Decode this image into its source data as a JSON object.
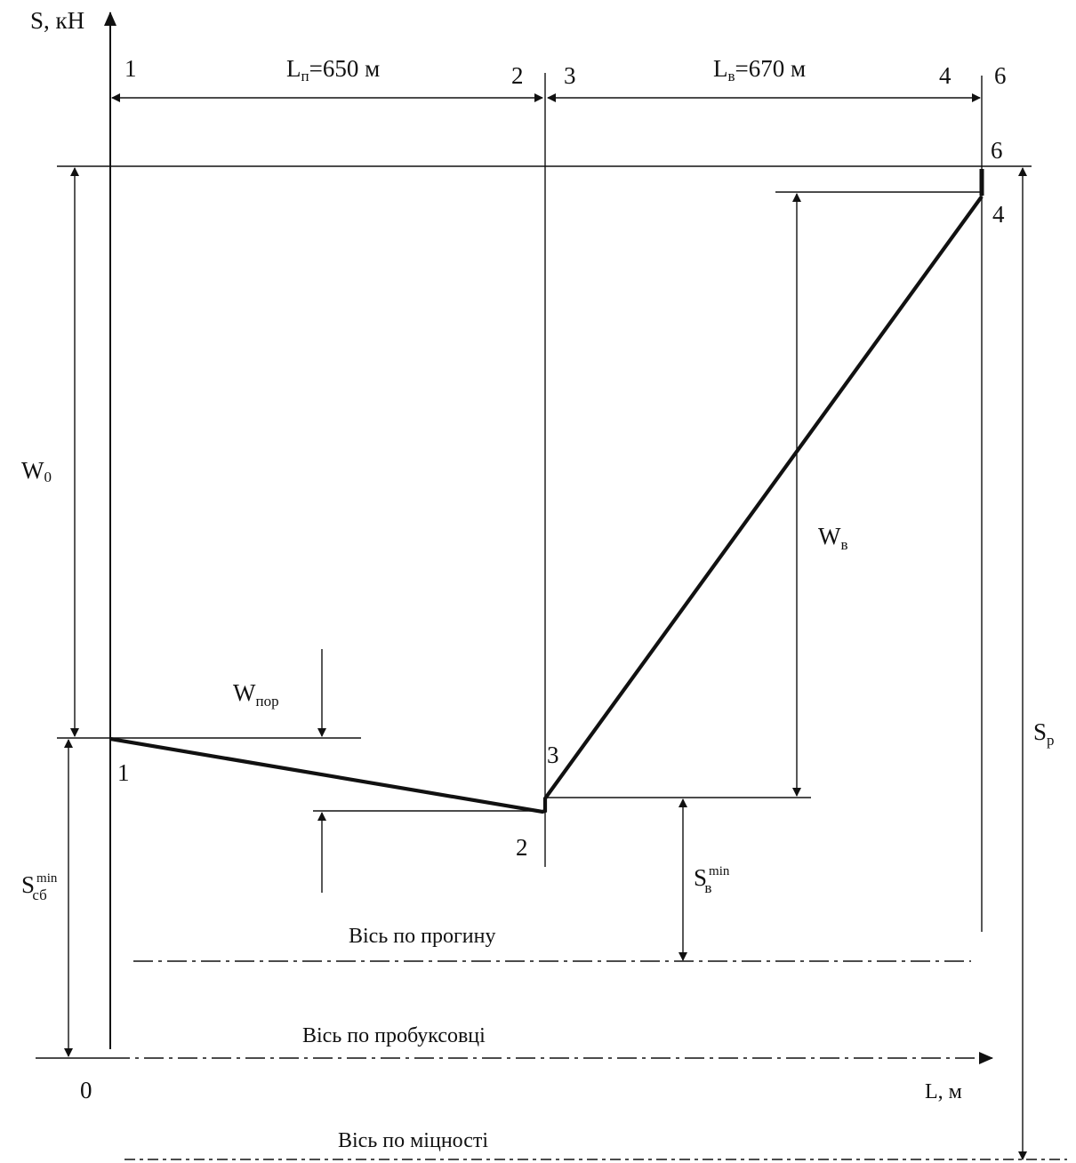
{
  "axes": {
    "y_label": "S, кН",
    "x_label": "L, м",
    "origin": "0"
  },
  "spans": {
    "lp_main": "L",
    "lp_sub": "п",
    "lp_value": "=650 м",
    "lv_main": "L",
    "lv_sub": "в",
    "lv_value": "=670 м"
  },
  "points": {
    "top_1": "1",
    "top_2": "2",
    "top_3": "3",
    "top_4": "4",
    "top_6": "6",
    "p6": "6",
    "p4": "4",
    "p1": "1",
    "p2": "2",
    "p3": "3"
  },
  "forces": {
    "w0_main": "W",
    "w0_sub": "0",
    "wpor_main": "W",
    "wpor_sub": "пор",
    "wv_main": "W",
    "wv_sub": "в",
    "sp_main": "S",
    "sp_sub": "р",
    "ssb_main": "S",
    "ssb_sub": "сб",
    "ssb_sup": "min",
    "sv_main": "S",
    "sv_sub": "в",
    "sv_sup": "min"
  },
  "reference_lines": {
    "deflection": "Вісь по прогину",
    "slip": "Вісь по пробуксовці",
    "strength": "Вісь по міцності"
  }
}
